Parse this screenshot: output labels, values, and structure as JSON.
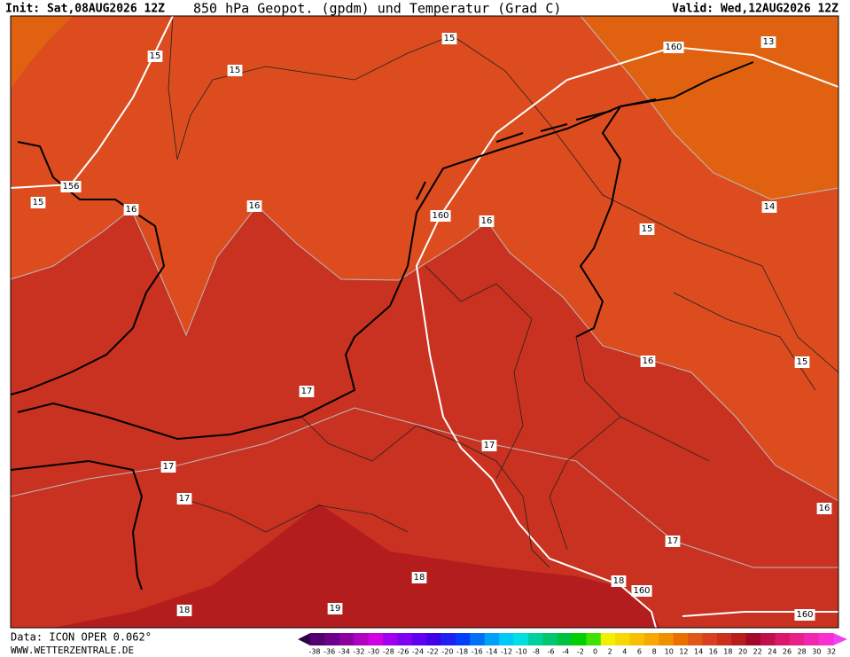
{
  "header": {
    "init": "Init: Sat,08AUG2026 12Z",
    "title": "850 hPa Geopot. (gpdm) und Temperatur (Grad C)",
    "valid": "Valid: Wed,12AUG2026 12Z"
  },
  "contour_labels": [
    "15",
    "15",
    "15",
    "160",
    "13",
    "156",
    "15",
    "16",
    "16",
    "160",
    "16",
    "14",
    "15",
    "15",
    "16",
    "17",
    "17",
    "17",
    "17",
    "16",
    "17",
    "18",
    "18",
    "160",
    "18",
    "19",
    "160"
  ],
  "footer": {
    "data_source": "Data: ICON OPER 0.062°",
    "website": "WWW.WETTERZENTRALE.DE"
  },
  "colorbar": {
    "labels": [
      "-38",
      "-36",
      "-34",
      "-32",
      "-30",
      "-28",
      "-26",
      "-24",
      "-22",
      "-20",
      "-18",
      "-16",
      "-14",
      "-12",
      "-10",
      "-8",
      "-6",
      "-4",
      "-2",
      "0",
      "2",
      "4",
      "6",
      "8",
      "10",
      "12",
      "14",
      "16",
      "18",
      "20",
      "22",
      "24",
      "26",
      "28",
      "30",
      "32"
    ],
    "colors": [
      "#500070",
      "#6c0088",
      "#8c00a0",
      "#b000c0",
      "#d000e0",
      "#a000f0",
      "#8000f0",
      "#6000f0",
      "#4000e8",
      "#2020f0",
      "#0040f8",
      "#0070f8",
      "#00a0f8",
      "#00c8f8",
      "#00e0e0",
      "#00d0a0",
      "#00c870",
      "#00c040",
      "#00d000",
      "#40e000",
      "#f0f000",
      "#f8d800",
      "#f8c000",
      "#f8a800",
      "#f09000",
      "#e87000",
      "#e05818",
      "#d84020",
      "#c83020",
      "#b81c1c",
      "#a00a28",
      "#c0104c",
      "#d81868",
      "#e82088",
      "#f028b0",
      "#f830d0"
    ]
  }
}
